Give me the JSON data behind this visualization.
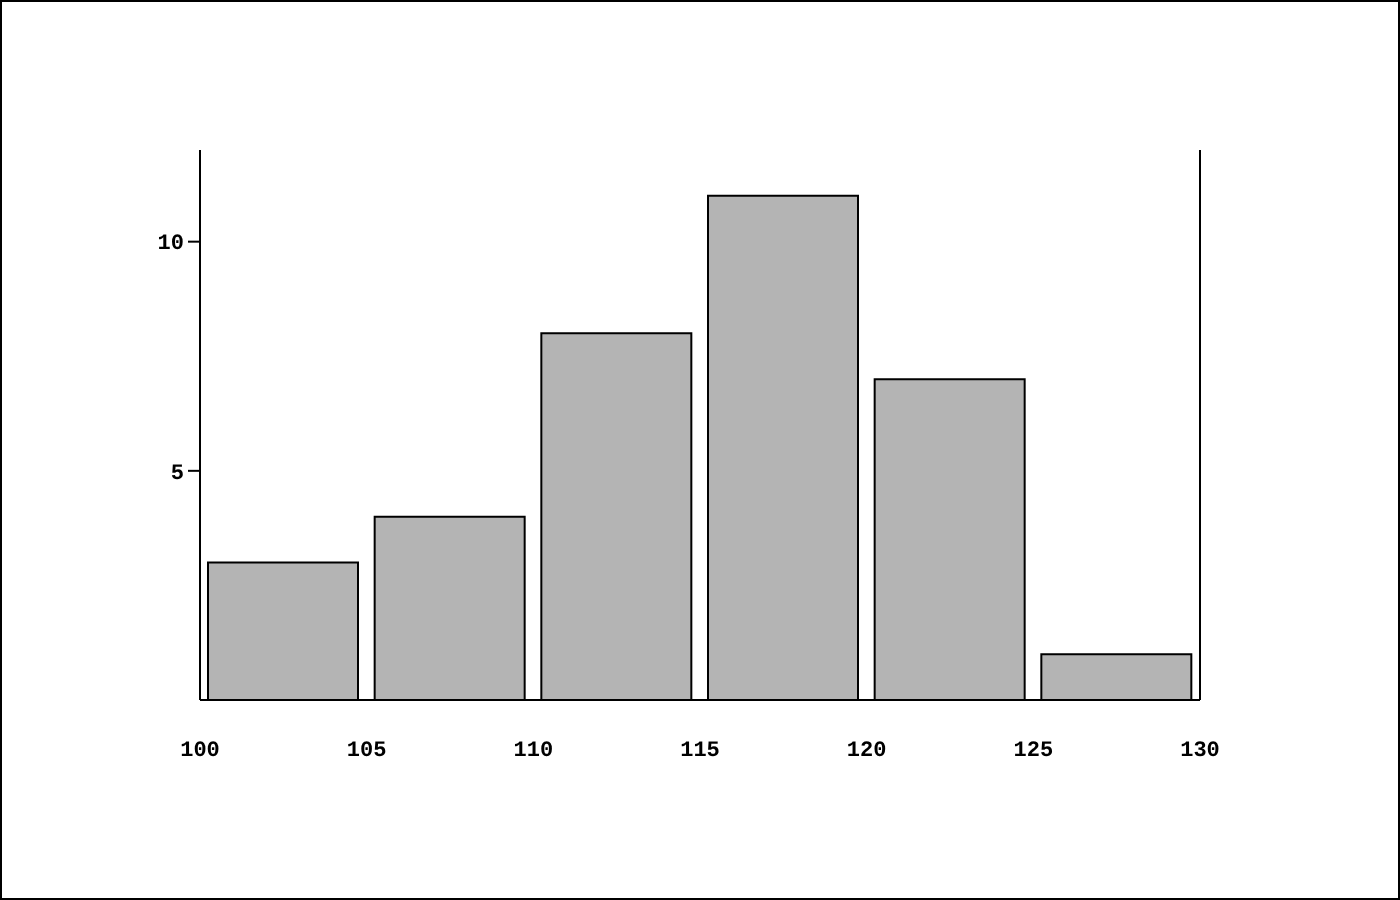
{
  "chart_data": {
    "type": "histogram",
    "bins": [
      100,
      105,
      110,
      115,
      120,
      125,
      130
    ],
    "values": [
      3,
      4,
      8,
      11,
      7,
      1
    ],
    "color": "#b4b4b4",
    "xlim": [
      100,
      130
    ],
    "xticks": [
      100,
      105,
      110,
      115,
      120,
      125,
      130
    ],
    "ylim": [
      0,
      12
    ],
    "yticks": [
      5,
      10
    ]
  }
}
